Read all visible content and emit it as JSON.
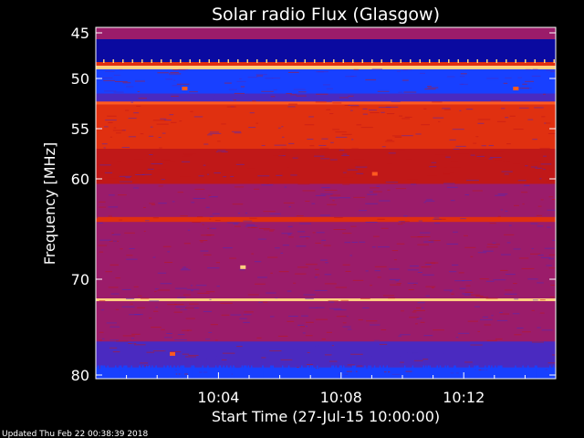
{
  "chart_data": {
    "type": "heatmap",
    "title": "Solar radio Flux (Glasgow)",
    "xlabel": "Start Time (27-Jul-15 10:00:00)",
    "ylabel": "Frequency [MHz]",
    "x_unit": "minutes after 10:00:00",
    "xlim": [
      0,
      15
    ],
    "ylim": [
      80,
      45
    ],
    "x_ticks": [
      4,
      8,
      12
    ],
    "x_tick_labels": [
      "10:04",
      "10:08",
      "10:12"
    ],
    "y_ticks": [
      45,
      50,
      55,
      60,
      70,
      80
    ],
    "y_tick_labels": [
      "45",
      "50",
      "55",
      "60",
      "70",
      "80"
    ],
    "legend": "none",
    "colormap": [
      "#0a0aa0",
      "#1840ff",
      "#4a2ac0",
      "#9b1c6a",
      "#c01818",
      "#e03010",
      "#ff5a20",
      "#ffd080"
    ],
    "bands": [
      {
        "from_mhz": 44.7,
        "to_mhz": 45.7,
        "level": 3
      },
      {
        "from_mhz": 45.7,
        "to_mhz": 48.2,
        "level": 0
      },
      {
        "from_mhz": 48.2,
        "to_mhz": 48.6,
        "level": 5
      },
      {
        "from_mhz": 48.6,
        "to_mhz": 49.0,
        "level": 7
      },
      {
        "from_mhz": 49.0,
        "to_mhz": 51.5,
        "level": 1
      },
      {
        "from_mhz": 51.5,
        "to_mhz": 52.3,
        "level": 2
      },
      {
        "from_mhz": 52.3,
        "to_mhz": 52.6,
        "level": 6
      },
      {
        "from_mhz": 52.6,
        "to_mhz": 57.0,
        "level": 5
      },
      {
        "from_mhz": 57.0,
        "to_mhz": 60.5,
        "level": 4
      },
      {
        "from_mhz": 60.5,
        "to_mhz": 63.8,
        "level": 3
      },
      {
        "from_mhz": 63.8,
        "to_mhz": 64.3,
        "level": 5
      },
      {
        "from_mhz": 64.3,
        "to_mhz": 70.5,
        "level": 3
      },
      {
        "from_mhz": 70.5,
        "to_mhz": 72.0,
        "level": 3
      },
      {
        "from_mhz": 72.0,
        "to_mhz": 72.3,
        "level": 7
      },
      {
        "from_mhz": 72.3,
        "to_mhz": 76.5,
        "level": 3
      },
      {
        "from_mhz": 76.5,
        "to_mhz": 79.2,
        "level": 2
      },
      {
        "from_mhz": 79.2,
        "to_mhz": 80.4,
        "level": 1
      }
    ],
    "bursts": [
      {
        "t_min": 2.9,
        "mhz": 51.0,
        "level": 6
      },
      {
        "t_min": 13.7,
        "mhz": 51.0,
        "level": 6
      },
      {
        "t_min": 9.1,
        "mhz": 59.5,
        "level": 6
      },
      {
        "t_min": 4.8,
        "mhz": 68.8,
        "level": 7
      },
      {
        "t_min": 2.5,
        "mhz": 77.8,
        "level": 6
      }
    ]
  },
  "footer": {
    "updated": "Updated Thu Feb 22 00:38:39 2018"
  }
}
